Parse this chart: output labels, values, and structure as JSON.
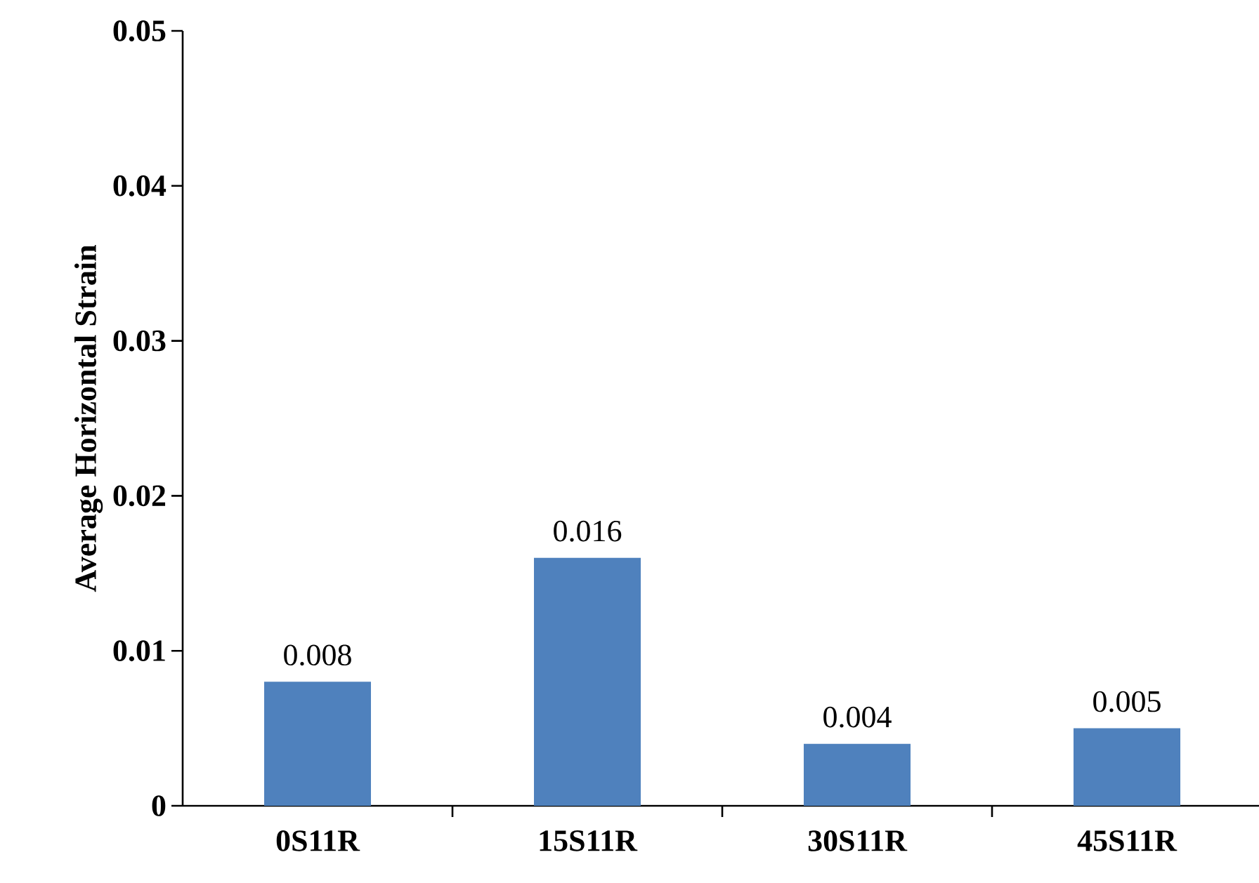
{
  "chart_data": {
    "type": "bar",
    "ylabel": "Average Horizontal Strain",
    "categories": [
      "0S11R",
      "15S11R",
      "30S11R",
      "45S11R"
    ],
    "values": [
      0.008,
      0.016,
      0.004,
      0.005
    ],
    "color": "#4f81bd",
    "ylim": [
      0,
      0.05
    ],
    "yticks": [
      0,
      0.01,
      0.02,
      0.03,
      0.04,
      0.05
    ],
    "data_labels": true,
    "grid": false,
    "legend": false
  }
}
